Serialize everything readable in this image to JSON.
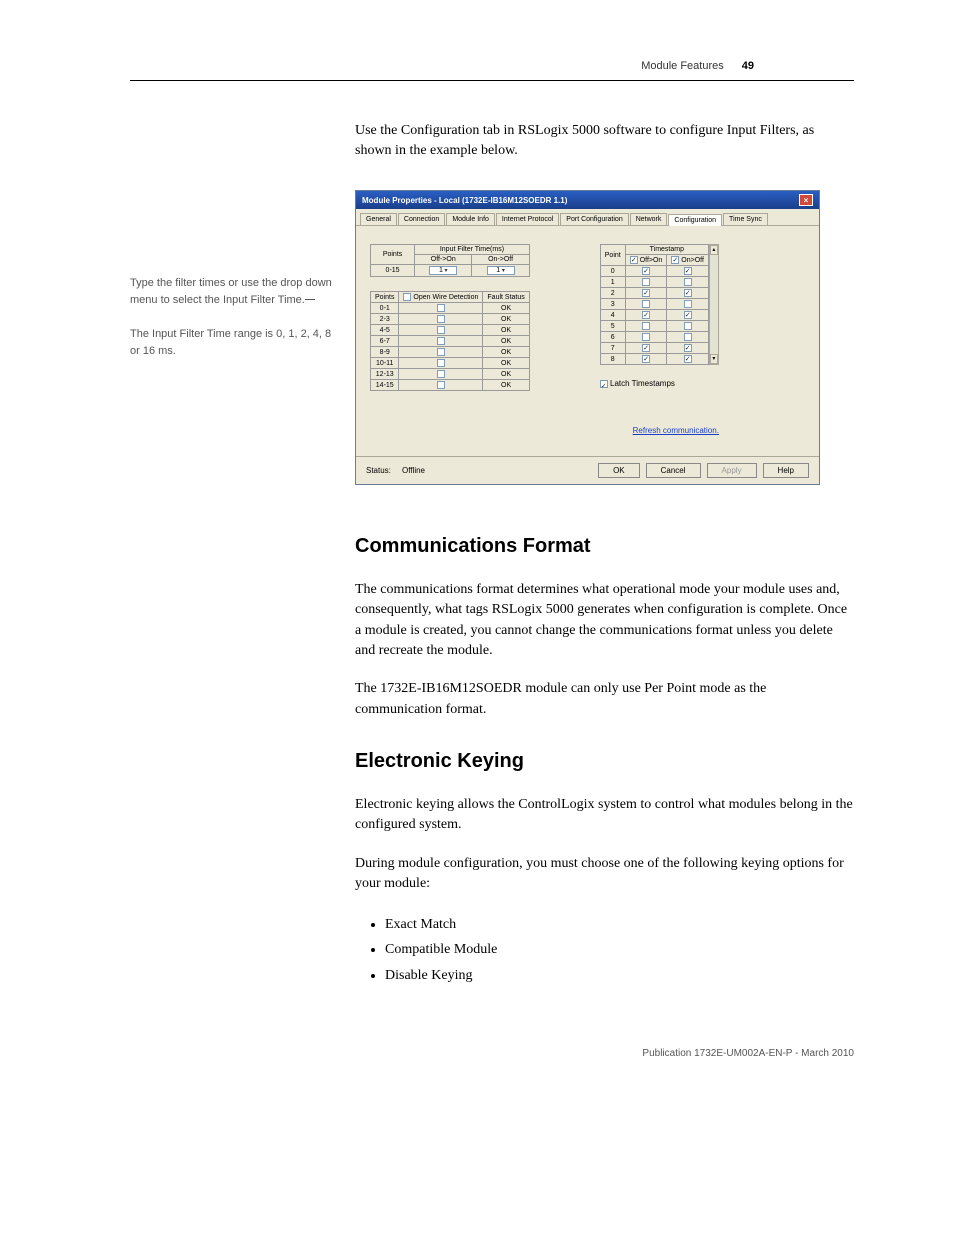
{
  "header": {
    "section": "Module Features",
    "page": "49"
  },
  "intro": "Use the Configuration tab in RSLogix 5000 software to configure Input Filters, as shown in the example below.",
  "captions": {
    "a": "Type the filter times or use the drop down menu to select the Input Filter Time.",
    "b": "The Input Filter Time range is 0, 1, 2, 4, 8 or 16 ms."
  },
  "dialog": {
    "title": "Module Properties - Local (1732E-IB16M12SOEDR  1.1)",
    "tabs": [
      "General",
      "Connection",
      "Module Info",
      "Internet Protocol",
      "Port Configuration",
      "Network",
      "Configuration",
      "Time Sync"
    ],
    "filter_header_points": "Points",
    "filter_header_time": "Input Filter Time(ms)",
    "filter_sub1": "Off->On",
    "filter_sub2": "On->Off",
    "filter_row_label": "0-15",
    "filter_val1": "1",
    "filter_val2": "1",
    "wire_header_points": "Points",
    "wire_header_det": "Open Wire Detection",
    "wire_header_fault": "Fault Status",
    "wire_rows": [
      "0-1",
      "2-3",
      "4-5",
      "6-7",
      "8-9",
      "10-11",
      "12-13",
      "14-15"
    ],
    "wire_status": "OK",
    "ts_header_point": "Point",
    "ts_header_ts": "Timestamp",
    "ts_sub1": "Off>On",
    "ts_sub2": "On>Off",
    "ts_rows": [
      {
        "i": "0",
        "a": true,
        "b": true
      },
      {
        "i": "1",
        "a": false,
        "b": false
      },
      {
        "i": "2",
        "a": true,
        "b": true
      },
      {
        "i": "3",
        "a": false,
        "b": false
      },
      {
        "i": "4",
        "a": true,
        "b": true
      },
      {
        "i": "5",
        "a": false,
        "b": false
      },
      {
        "i": "6",
        "a": false,
        "b": false
      },
      {
        "i": "7",
        "a": true,
        "b": true
      },
      {
        "i": "8",
        "a": true,
        "b": true
      }
    ],
    "latch_label": "Latch Timestamps",
    "refresh_link": "Refresh communication.",
    "status_label": "Status:",
    "status_value": "Offline",
    "btn_ok": "OK",
    "btn_cancel": "Cancel",
    "btn_apply": "Apply",
    "btn_help": "Help"
  },
  "sections": {
    "comm_heading": "Communications Format",
    "comm_p1": "The communications format determines what operational mode your module uses and, consequently, what tags RSLogix 5000 generates when configuration is complete. Once a module is created, you cannot change the communications format unless you delete and recreate the module.",
    "comm_p2": "The 1732E-IB16M12SOEDR module can only use Per Point mode as the communication format.",
    "ek_heading": "Electronic Keying",
    "ek_p1": "Electronic keying allows the ControlLogix system to control what modules belong in the configured system.",
    "ek_p2": "During module configuration, you must choose one of the following keying options for your module:",
    "ek_bullets": [
      "Exact Match",
      "Compatible Module",
      "Disable Keying"
    ]
  },
  "footer": "Publication 1732E-UM002A-EN-P - March 2010"
}
